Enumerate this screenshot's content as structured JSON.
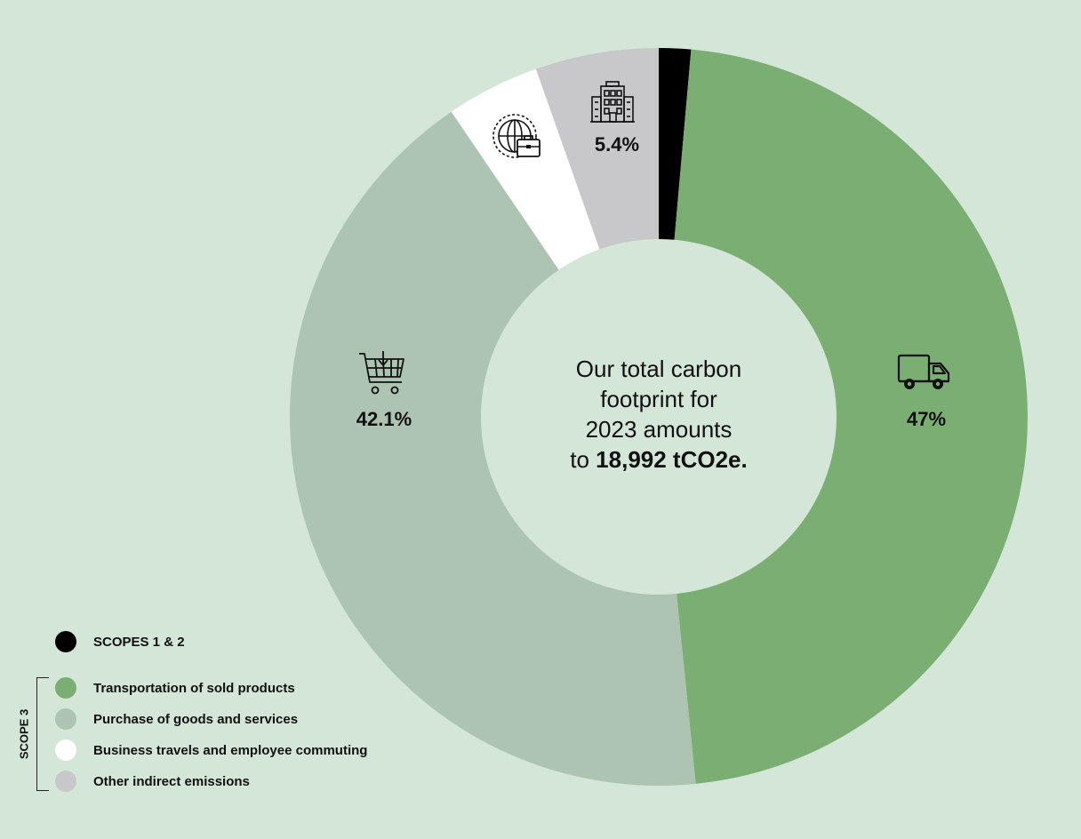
{
  "chart_data": {
    "type": "pie",
    "title": "",
    "categories": [
      "SCOPES 1 & 2",
      "Transportation of sold products",
      "Purchase of goods and services",
      "Business travels and employee commuting",
      "Other indirect emissions"
    ],
    "values": [
      1.4,
      47,
      42.1,
      4.1,
      5.4
    ],
    "colors": [
      "#000000",
      "#7aae72",
      "#aec4b3",
      "#ffffff",
      "#c8c8cb"
    ],
    "data_labels": {
      "transport": "47%",
      "purchase": "42.1%",
      "other": "5.4%"
    },
    "donut": true
  },
  "center": {
    "line1": "Our total carbon",
    "line2": "footprint for",
    "line3": "2023 amounts",
    "line4_prefix": "to",
    "line4_value": "18,992 tCO2e."
  },
  "legend": {
    "items": [
      {
        "label": "SCOPES 1 & 2",
        "color": "#000000"
      },
      {
        "label": "Transportation of sold products",
        "color": "#7aae72"
      },
      {
        "label": "Purchase of goods and services",
        "color": "#aec4b3"
      },
      {
        "label": "Business travels and employee commuting",
        "color": "#ffffff"
      },
      {
        "label": "Other indirect emissions",
        "color": "#c8c8cb"
      }
    ],
    "group_label": "SCOPE 3"
  },
  "icons": {
    "transport": "truck-icon",
    "purchase": "shopping-cart-icon",
    "travel": "globe-briefcase-icon",
    "other": "building-icon"
  }
}
